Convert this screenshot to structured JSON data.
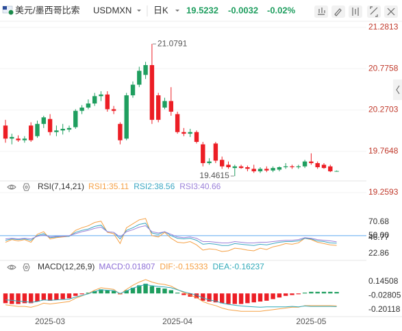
{
  "header": {
    "title": "美元/墨西哥比索",
    "symbol": "USDMXN",
    "period": "日K",
    "price": "19.5232",
    "change": "-0.0032",
    "change_pct": "-0.02%"
  },
  "chart_data": [
    {
      "type": "candlestick",
      "categories": [
        null,
        null,
        null,
        null,
        null,
        null,
        null,
        "2025-03",
        null,
        null,
        null,
        null,
        null,
        null,
        null,
        null,
        null,
        null,
        null,
        null,
        null,
        null,
        null,
        null,
        null,
        null,
        null,
        "2025-04",
        null,
        null,
        null,
        null,
        null,
        null,
        null,
        null,
        null,
        null,
        null,
        null,
        null,
        null,
        null,
        null,
        null,
        null,
        null,
        null,
        "2025-05",
        null,
        null,
        null,
        null
      ],
      "open": [
        20.08,
        19.92,
        19.92,
        19.9,
        20.08,
        19.95,
        20.1,
        20.16,
        20.0,
        20.02,
        20.03,
        20.06,
        20.26,
        20.3,
        20.35,
        20.44,
        20.46,
        20.28,
        20.1,
        19.92,
        20.45,
        20.58,
        20.7,
        20.82,
        20.45,
        20.3,
        20.38,
        20.22,
        20.0,
        19.98,
        20.0,
        19.85,
        19.62,
        19.86,
        19.66,
        19.6,
        19.56,
        19.58,
        19.57,
        19.55,
        19.52,
        19.55,
        19.53,
        19.54,
        19.57,
        19.58,
        19.57,
        19.58,
        19.64,
        19.62,
        19.6,
        19.58,
        19.52
      ],
      "high": [
        20.15,
        19.98,
        19.96,
        19.95,
        20.12,
        20.14,
        20.2,
        20.22,
        20.08,
        20.1,
        20.08,
        20.28,
        20.33,
        20.4,
        20.48,
        20.5,
        20.5,
        20.32,
        20.12,
        20.48,
        20.62,
        20.8,
        20.86,
        21.0791,
        20.48,
        20.42,
        20.55,
        20.25,
        20.05,
        20.04,
        20.02,
        19.88,
        19.68,
        19.88,
        19.7,
        19.64,
        19.6,
        19.6,
        19.59,
        19.6,
        19.57,
        19.58,
        19.58,
        19.58,
        19.62,
        19.6,
        19.6,
        19.66,
        19.74,
        19.64,
        19.62,
        19.6,
        19.53
      ],
      "low": [
        19.87,
        19.85,
        19.88,
        19.87,
        19.88,
        19.93,
        20.05,
        19.96,
        19.95,
        19.97,
        20.0,
        20.04,
        20.22,
        20.28,
        20.32,
        20.38,
        20.25,
        20.22,
        19.85,
        19.9,
        20.42,
        20.55,
        20.65,
        20.1,
        20.12,
        20.28,
        20.2,
        19.98,
        19.95,
        19.94,
        19.86,
        19.58,
        19.6,
        19.62,
        19.55,
        19.55,
        19.4615,
        19.55,
        19.52,
        19.5,
        19.5,
        19.51,
        19.51,
        19.52,
        19.55,
        19.55,
        19.55,
        19.56,
        19.6,
        19.55,
        19.55,
        19.51,
        19.52
      ],
      "close": [
        19.92,
        19.94,
        19.9,
        19.92,
        19.9,
        20.1,
        20.18,
        20.0,
        20.02,
        20.04,
        20.05,
        20.26,
        20.3,
        20.35,
        20.44,
        20.46,
        20.28,
        20.26,
        19.9,
        20.45,
        20.58,
        20.75,
        20.82,
        20.15,
        20.15,
        20.38,
        20.25,
        20.0,
        19.98,
        20.0,
        19.88,
        19.62,
        19.64,
        19.65,
        19.58,
        19.57,
        19.58,
        19.56,
        19.55,
        19.52,
        19.55,
        19.53,
        19.56,
        19.57,
        19.58,
        19.57,
        19.58,
        19.64,
        19.62,
        19.57,
        19.56,
        19.52,
        19.5232
      ],
      "up_color": "#1f9e5f",
      "down_color": "#ec1e25",
      "ylim": [
        19.184,
        21.382
      ],
      "yticks": [
        21.2813,
        20.7758,
        20.2703,
        19.7648,
        19.2593
      ],
      "tick_color": "#c0392b",
      "grid": true,
      "max_label": "21.0791",
      "min_label": "19.4615"
    },
    {
      "type": "line",
      "title": "RSI(7,14,21)",
      "series": [
        {
          "name": "RSI1:35.11",
          "color": "#f5a044",
          "values": [
            40,
            44,
            42,
            44,
            40,
            52,
            56,
            45,
            47,
            48,
            49,
            58,
            62,
            65,
            70,
            72,
            55,
            53,
            38,
            62,
            68,
            74,
            76,
            50,
            48,
            55,
            46,
            40,
            39,
            41,
            36,
            28,
            30,
            29,
            26,
            27,
            31,
            30,
            28,
            27,
            31,
            29,
            33,
            35,
            38,
            37,
            39,
            46,
            44,
            40,
            38,
            36,
            35.11
          ]
        },
        {
          "name": "RSI2:38.56",
          "color": "#3aa6c2",
          "values": [
            43,
            45,
            44,
            45,
            43,
            50,
            53,
            47,
            48,
            49,
            49,
            55,
            58,
            60,
            64,
            66,
            56,
            55,
            45,
            58,
            62,
            67,
            69,
            54,
            52,
            56,
            50,
            46,
            45,
            46,
            43,
            37,
            38,
            37,
            35,
            35,
            38,
            37,
            36,
            35,
            37,
            36,
            38,
            40,
            41,
            41,
            42,
            46,
            45,
            42,
            41,
            39,
            38.56
          ]
        },
        {
          "name": "RSI3:40.66",
          "color": "#9b80d9",
          "values": [
            45,
            46,
            45,
            46,
            45,
            49,
            51,
            48,
            49,
            49,
            50,
            53,
            56,
            58,
            61,
            63,
            56,
            55,
            48,
            56,
            59,
            63,
            65,
            56,
            54,
            56,
            52,
            48,
            47,
            48,
            46,
            41,
            41,
            40,
            39,
            39,
            41,
            40,
            39,
            39,
            40,
            40,
            41,
            42,
            43,
            43,
            44,
            47,
            46,
            44,
            43,
            42,
            40.66
          ]
        }
      ],
      "ylim": [
        14.5,
        108.1
      ],
      "yticks": [
        70.68,
        {
          "value": 50,
          "label": "50.00"
        },
        46.77,
        22.86
      ],
      "tick_color": "#333333",
      "reference_lines": [
        {
          "value": 50,
          "color": "#5aa9f0"
        }
      ]
    },
    {
      "type": "macd",
      "title": "MACD(12,26,9)",
      "series": [
        {
          "name": "MACD:0.01807",
          "color": "#8e6fd6",
          "up_color": "#1f9e5f",
          "down_color": "#ec1e25",
          "values": [
            -0.12,
            -0.13,
            -0.13,
            -0.12,
            -0.12,
            -0.1,
            -0.08,
            -0.09,
            -0.08,
            -0.07,
            -0.06,
            -0.03,
            -0.01,
            0.01,
            0.03,
            0.05,
            0.04,
            0.03,
            -0.01,
            0.04,
            0.07,
            0.1,
            0.12,
            0.09,
            0.07,
            0.06,
            0.04,
            0.01,
            -0.02,
            -0.04,
            -0.06,
            -0.09,
            -0.1,
            -0.11,
            -0.12,
            -0.13,
            -0.13,
            -0.13,
            -0.12,
            -0.11,
            -0.1,
            -0.09,
            -0.07,
            -0.05,
            -0.03,
            -0.02,
            -0.01,
            0.01,
            0.02,
            0.02,
            0.02,
            0.02,
            0.01807
          ]
        },
        {
          "name": "DIF:-0.15333",
          "color": "#f5a044",
          "values": [
            -0.14,
            -0.15,
            -0.16,
            -0.16,
            -0.17,
            -0.15,
            -0.12,
            -0.13,
            -0.12,
            -0.11,
            -0.1,
            -0.06,
            -0.03,
            0,
            0.04,
            0.07,
            0.06,
            0.05,
            -0.01,
            0.05,
            0.1,
            0.14,
            0.17,
            0.14,
            0.12,
            0.11,
            0.09,
            0.05,
            0.01,
            -0.02,
            -0.05,
            -0.1,
            -0.13,
            -0.15,
            -0.18,
            -0.2,
            -0.21,
            -0.22,
            -0.22,
            -0.22,
            -0.22,
            -0.21,
            -0.2,
            -0.19,
            -0.18,
            -0.17,
            -0.17,
            -0.15,
            -0.15,
            -0.15,
            -0.15,
            -0.15,
            -0.15333
          ]
        },
        {
          "name": "DEA:-0.16237",
          "color": "#2fa9b8",
          "values": [
            -0.08,
            -0.085,
            -0.095,
            -0.1,
            -0.11,
            -0.1,
            -0.08,
            -0.085,
            -0.08,
            -0.075,
            -0.07,
            -0.045,
            -0.025,
            -0.005,
            0.025,
            0.045,
            0.04,
            0.035,
            0,
            0.03,
            0.065,
            0.09,
            0.11,
            0.095,
            0.085,
            0.08,
            0.07,
            0.045,
            0.02,
            0,
            -0.02,
            -0.055,
            -0.08,
            -0.095,
            -0.12,
            -0.135,
            -0.145,
            -0.155,
            -0.16,
            -0.165,
            -0.17,
            -0.165,
            -0.165,
            -0.165,
            -0.165,
            -0.16,
            -0.165,
            -0.155,
            -0.16,
            -0.16,
            -0.16,
            -0.16,
            -0.16237
          ]
        }
      ],
      "ylim": [
        -0.2856,
        0.2802
      ],
      "yticks": [
        0.14508,
        -0.02805,
        -0.20118
      ],
      "tick_color": "#333333"
    }
  ]
}
